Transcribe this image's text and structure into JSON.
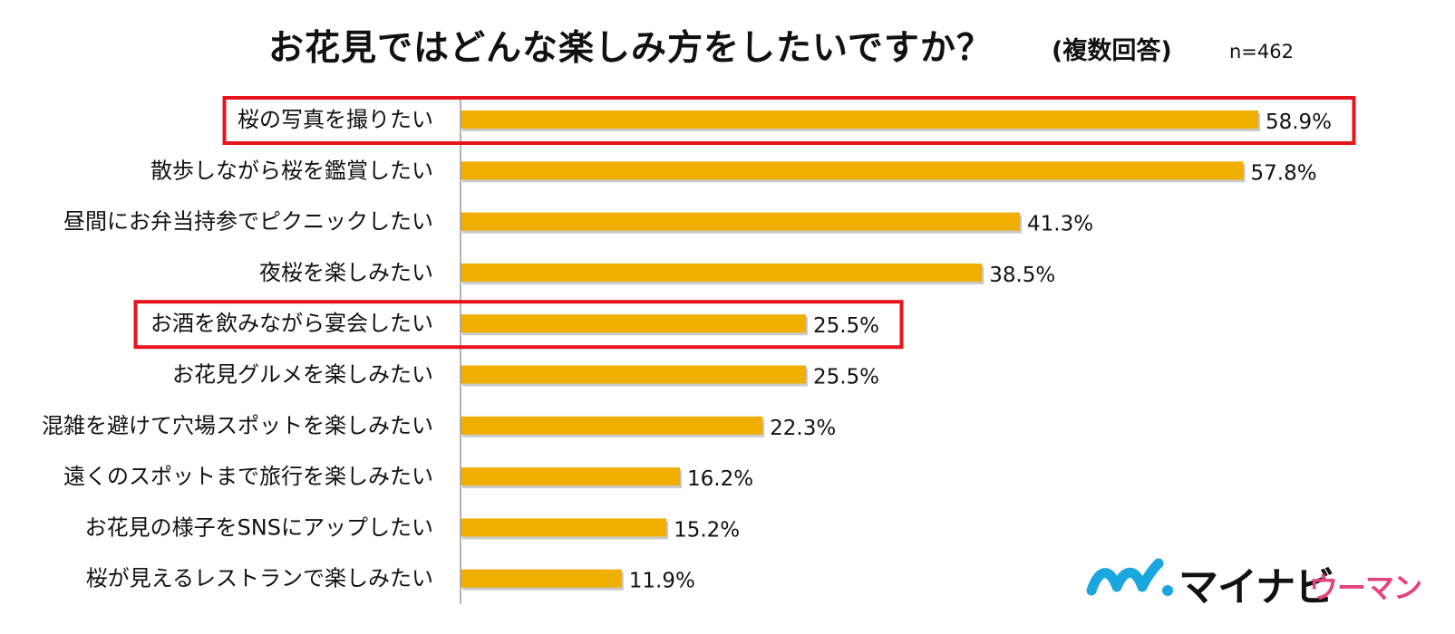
{
  "title": "お花見ではどんな楽しみ方をしたいですか？",
  "subtitle": "(複数回答)",
  "sample_size": "n=462",
  "logo": {
    "main": "マイナビ",
    "sub": "ウーマン"
  },
  "colors": {
    "bar": "#f0ae00",
    "bar_shadow": "#c9c9c9",
    "highlight_box": "#e8141b",
    "axis": "#9a9a9a",
    "logo_blue": "#1aa6df",
    "logo_pink": "#e4437f"
  },
  "chart_data": {
    "type": "bar",
    "orientation": "horizontal",
    "categories": [
      "桜の写真を撮りたい",
      "散歩しながら桜を鑑賞したい",
      "昼間にお弁当持参でピクニックしたい",
      "夜桜を楽しみたい",
      "お酒を飲みながら宴会したい",
      "お花見グルメを楽しみたい",
      "混雑を避けて穴場スポットを楽しみたい",
      "遠くのスポットまで旅行を楽しみたい",
      "お花見の様子をSNSにアップしたい",
      "桜が見えるレストランで楽しみたい"
    ],
    "values": [
      58.9,
      57.8,
      41.3,
      38.5,
      25.5,
      25.5,
      22.3,
      16.2,
      15.2,
      11.9
    ],
    "value_labels": [
      "58.9%",
      "57.8%",
      "41.3%",
      "38.5%",
      "25.5%",
      "25.5%",
      "22.3%",
      "16.2%",
      "15.2%",
      "11.9%"
    ],
    "highlighted_categories": [
      "桜の写真を撮りたい",
      "お酒を飲みながら宴会したい"
    ],
    "xlim": [
      0,
      70
    ],
    "grid": false,
    "legend": "none"
  }
}
